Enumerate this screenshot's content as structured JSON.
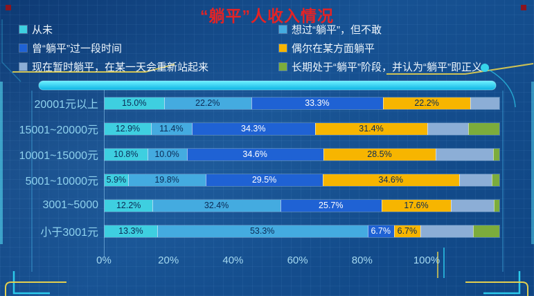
{
  "title": "“躺平”人收入情况",
  "legend": {
    "items": [
      {
        "label": "从未",
        "color": "#3ecfe0"
      },
      {
        "label": "曾“躺平”过一段时间",
        "color": "#1f62d4"
      },
      {
        "label": "现在暂时躺平，在某一天会重新站起来",
        "color": "#8caed6"
      },
      {
        "label": "想过“躺平”，但不敢",
        "color": "#44abe0"
      },
      {
        "label": "偶尔在某方面躺平",
        "color": "#f7b500"
      },
      {
        "label": "长期处于“躺平”阶段，并认为“躺平”即正义",
        "color": "#7cac3c"
      }
    ]
  },
  "chart_data": {
    "type": "bar",
    "subtype": "horizontal-stacked-percent",
    "title": "“躺平”人收入情况",
    "categories": [
      "20001元以上",
      "15001~20000元",
      "10001~15000元",
      "5001~10000元",
      "3001~5000",
      "小于3001元"
    ],
    "series": [
      {
        "name": "从未",
        "color": "#3ecfe0",
        "labeled": true,
        "values": [
          15.0,
          12.9,
          10.8,
          5.9,
          12.2,
          13.3
        ]
      },
      {
        "name": "想过“躺平”，但不敢",
        "color": "#44abe0",
        "labeled": true,
        "values": [
          22.2,
          11.4,
          10.0,
          19.8,
          32.4,
          53.3
        ]
      },
      {
        "name": "曾“躺平”过一段时间",
        "color": "#1f62d4",
        "labeled": true,
        "values": [
          33.3,
          34.3,
          34.6,
          29.5,
          25.7,
          6.7
        ]
      },
      {
        "name": "偶尔在某方面躺平",
        "color": "#f7b500",
        "labeled": true,
        "values": [
          22.2,
          31.4,
          28.5,
          34.6,
          17.6,
          6.7
        ]
      },
      {
        "name": "现在暂时躺平，在某一天会重新站起来",
        "color": "#8caed6",
        "labeled": false,
        "values": [
          7.3,
          11.4,
          14.6,
          8.3,
          10.9,
          13.3
        ]
      },
      {
        "name": "长期处于“躺平”阶段，并认为“躺平”即正义",
        "color": "#7cac3c",
        "labeled": false,
        "values": [
          0,
          8.6,
          1.5,
          1.9,
          1.4,
          6.7
        ]
      }
    ],
    "x_ticks": [
      "0%",
      "20%",
      "40%",
      "60%",
      "80%",
      "100%"
    ],
    "xlim": [
      0,
      100
    ],
    "legend_position": "top",
    "grid": true
  }
}
